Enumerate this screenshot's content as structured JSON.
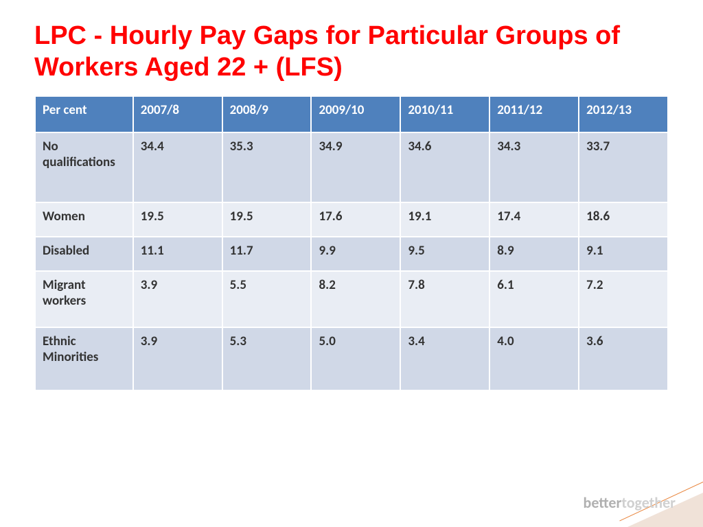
{
  "title": "LPC - Hourly Pay Gaps for Particular Groups of Workers Aged 22 + (LFS)",
  "table": {
    "type": "table",
    "header_bg": "#4f81bd",
    "header_text_color": "#ffffff",
    "row_odd_bg": "#d0d8e7",
    "row_even_bg": "#e9edf4",
    "cell_text_color": "#333333",
    "border_spacing": 2,
    "font_size": 19,
    "font_weight": "bold",
    "columns": [
      "Per cent",
      "2007/8",
      "2008/9",
      "2009/10",
      "2010/11",
      "2011/12",
      "2012/13"
    ],
    "rows": [
      {
        "label": "No qualifications",
        "values": [
          "34.4",
          "35.3",
          "34.9",
          "34.6",
          "34.3",
          "33.7"
        ]
      },
      {
        "label": "Women",
        "values": [
          "19.5",
          "19.5",
          "17.6",
          "19.1",
          "17.4",
          "18.6"
        ]
      },
      {
        "label": "Disabled",
        "values": [
          "11.1",
          "11.7",
          "9.9",
          "9.5",
          "8.9",
          "9.1"
        ]
      },
      {
        "label": "Migrant workers",
        "values": [
          "3.9",
          "5.5",
          "8.2",
          "7.8",
          "6.1",
          "7.2"
        ]
      },
      {
        "label": "Ethnic Minorities",
        "values": [
          "3.9",
          "5.3",
          "5.0",
          "3.4",
          "4.0",
          "3.6"
        ]
      }
    ]
  },
  "footer": {
    "word1": "better",
    "word2": "together"
  },
  "colors": {
    "title": "#ff0000",
    "background": "#ffffff",
    "footer_light": "#d0d0d0",
    "footer_dark": "#b0b0b0",
    "corner_fill": "#f0e2d8",
    "corner_line": "#e8833a"
  }
}
